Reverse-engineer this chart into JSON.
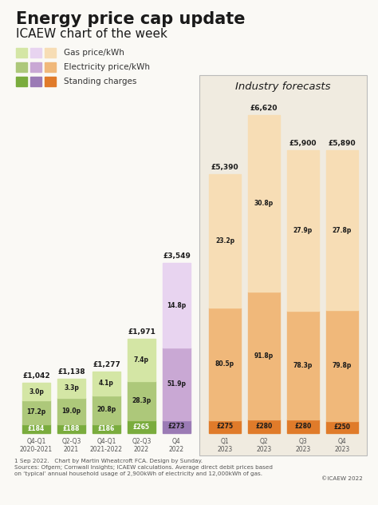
{
  "title": "Energy price cap update",
  "subtitle": "ICAEW chart of the week",
  "footnote1": "1 Sep 2022.   Chart by Martin Wheatcroft FCA. Design by Sunday.",
  "footnote2": "Sources: Ofgem; Cornwall Insights; ICAEW calculations. Average direct debit prices based",
  "footnote3": "on ‘typical’ annual household usage of 2,900kWh of electricity and 12,000kWh of gas.",
  "copyright": "©ICAEW 2022",
  "historical_labels": [
    "Q4-Q1\n2020-2021",
    "Q2-Q3\n2021",
    "Q4-Q1\n2021-2022",
    "Q2-Q3\n2022",
    "Q4\n2022"
  ],
  "forecast_labels": [
    "Q1\n2023",
    "Q2\n2023",
    "Q3\n2023",
    "Q4\n2023"
  ],
  "historical_standing": [
    184,
    188,
    186,
    265,
    273
  ],
  "historical_elec": [
    172,
    190,
    208,
    283,
    519
  ],
  "historical_gas": [
    30,
    33,
    41,
    74,
    148
  ],
  "historical_totals": [
    "£1,042",
    "£1,138",
    "£1,277",
    "£1,971",
    "£3,549"
  ],
  "historical_standing_labels": [
    "£184",
    "£188",
    "£186",
    "£265",
    "£273"
  ],
  "historical_elec_labels": [
    "17.2p",
    "19.0p",
    "20.8p",
    "28.3p",
    "51.9p"
  ],
  "historical_gas_labels": [
    "3.0p",
    "3.3p",
    "4.1p",
    "7.4p",
    "14.8p"
  ],
  "forecast_standing": [
    275,
    280,
    280,
    250
  ],
  "forecast_elec": [
    805,
    918,
    783,
    798
  ],
  "forecast_gas": [
    232,
    308,
    279,
    278
  ],
  "forecast_totals": [
    "£5,390",
    "£6,620",
    "£5,900",
    "£5,890"
  ],
  "forecast_standing_labels": [
    "£275",
    "£280",
    "£280",
    "£250"
  ],
  "forecast_elec_labels": [
    "80.5p",
    "91.8p",
    "78.3p",
    "79.8p"
  ],
  "forecast_gas_labels": [
    "23.2p",
    "30.8p",
    "27.9p",
    "27.8p"
  ],
  "color_hist_standing": "#7aac3d",
  "color_hist_elec": "#adc87a",
  "color_hist_gas": "#d4e6a5",
  "color_fore_standing": "#e07b2a",
  "color_fore_elec": "#f0b87a",
  "color_fore_gas": "#f7ddb5",
  "color_Q4_standing": "#9b7bb5",
  "color_Q4_elec": "#c9a8d4",
  "color_Q4_gas": "#e8d4f0",
  "forecast_box_title": "Industry forecasts",
  "background_color": "#faf9f5",
  "forecast_bg": "#f0ebe0"
}
